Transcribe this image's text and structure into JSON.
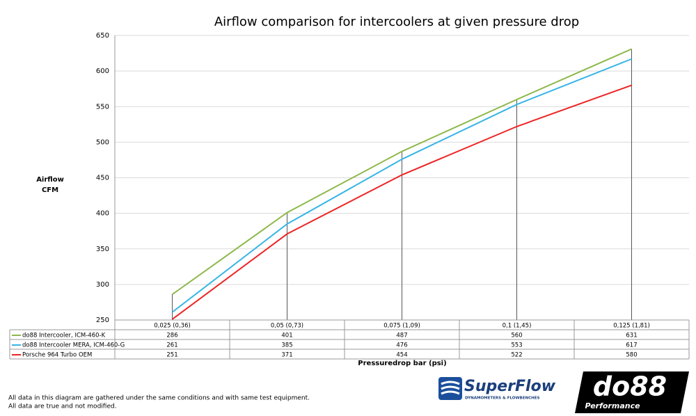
{
  "chart_data": {
    "type": "line",
    "title": "Airflow comparison for intercoolers at given pressure drop",
    "y_label": [
      "Airflow",
      "CFM"
    ],
    "x_label": "Pressuredrop bar (psi)",
    "categories": [
      "0,025 (0,36)",
      "0,05 (0,73)",
      "0,075 (1,09)",
      "0,1 (1,45)",
      "0,125 (1,81)"
    ],
    "series": [
      {
        "name": "do88 Intercooler, ICM-460-K",
        "color": "#8db84a",
        "values": [
          286,
          401,
          487,
          560,
          631
        ]
      },
      {
        "name": "do88 Intercooler MERA, ICM-460-G",
        "color": "#37b4e6",
        "values": [
          261,
          385,
          476,
          553,
          617
        ]
      },
      {
        "name": "Porsche 964 Turbo OEM",
        "color": "#ee2424",
        "values": [
          251,
          371,
          454,
          522,
          580
        ]
      }
    ],
    "ylim": [
      250,
      650
    ],
    "yticks": [
      250,
      300,
      350,
      400,
      450,
      500,
      550,
      600,
      650
    ],
    "grid": true,
    "drop_lines": true,
    "data_table": true
  },
  "notes": [
    "All data in this diagram are gathered under the same conditions and with same test equipment.",
    "All data are true and not modified."
  ],
  "logos": {
    "superflow": "SuperFlow",
    "superflow_tagline": "DYNAMOMETERS & FLOWBENCHES",
    "do88": "do88",
    "do88_tagline": "Performance"
  }
}
